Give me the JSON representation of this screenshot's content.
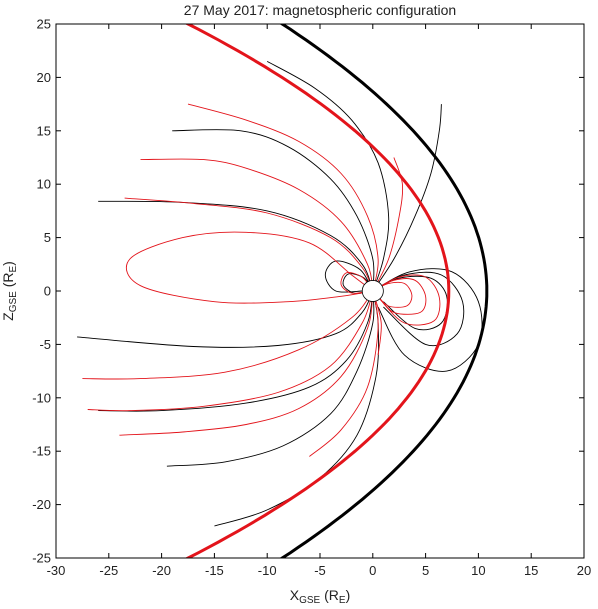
{
  "chart_data": {
    "type": "line",
    "title": "27 May 2017: magnetospheric configuration",
    "xlabel": {
      "main": "X",
      "sub": "GSE",
      "unit_open": " (R",
      "unit_sub": "E",
      "unit_close": ")"
    },
    "ylabel": {
      "main": "Z",
      "sub": "GSE",
      "unit_open": " (R",
      "unit_sub": "E",
      "unit_close": ")"
    },
    "xlim": [
      -30,
      20
    ],
    "ylim": [
      -25,
      25
    ],
    "xticks": [
      -30,
      -25,
      -20,
      -15,
      -10,
      -5,
      0,
      5,
      10,
      15,
      20
    ],
    "yticks": [
      -25,
      -20,
      -15,
      -10,
      -5,
      0,
      5,
      10,
      15,
      20,
      25
    ],
    "grid": false,
    "colors": {
      "black": "#000000",
      "red": "#e3141b"
    },
    "boundaries": [
      {
        "color": "black",
        "nose": 10.8,
        "flare": 0.031
      },
      {
        "color": "red",
        "nose": 7.2,
        "flare": 0.0395
      }
    ],
    "earth_radius": 1,
    "field_lines": [
      {
        "color": "black",
        "points": [
          [
            0,
            0
          ],
          [
            2,
            3
          ],
          [
            4,
            7
          ],
          [
            5.5,
            11
          ],
          [
            6.3,
            15
          ],
          [
            6.5,
            17.5
          ]
        ]
      },
      {
        "color": "black",
        "points": [
          [
            0,
            0
          ],
          [
            1,
            3
          ],
          [
            1.5,
            7
          ],
          [
            0.5,
            12
          ],
          [
            -2,
            16
          ],
          [
            -5.5,
            19
          ],
          [
            -10,
            21.5
          ]
        ]
      },
      {
        "color": "black",
        "points": [
          [
            0,
            0
          ],
          [
            0,
            3
          ],
          [
            -1.5,
            7
          ],
          [
            -4,
            10.5
          ],
          [
            -8,
            13.5
          ],
          [
            -12.5,
            15
          ],
          [
            -19,
            15
          ]
        ]
      },
      {
        "color": "black",
        "points": [
          [
            0,
            0
          ],
          [
            -1,
            2.5
          ],
          [
            -4,
            5.2
          ],
          [
            -10,
            7.5
          ],
          [
            -18,
            8.3
          ],
          [
            -26,
            8.4
          ]
        ]
      },
      {
        "color": "black",
        "points": [
          [
            0,
            0
          ],
          [
            -1,
            -2
          ],
          [
            -3.5,
            -4
          ],
          [
            -9,
            -5.1
          ],
          [
            -17,
            -5.2
          ],
          [
            -28,
            -4.3
          ]
        ]
      },
      {
        "color": "black",
        "points": [
          [
            0,
            0
          ],
          [
            -0.5,
            -3
          ],
          [
            -2.5,
            -6.5
          ],
          [
            -6,
            -9
          ],
          [
            -12,
            -10.5
          ],
          [
            -20,
            -11.2
          ],
          [
            -26,
            -11.2
          ]
        ]
      },
      {
        "color": "black",
        "points": [
          [
            0,
            0
          ],
          [
            0,
            -3
          ],
          [
            -1.5,
            -7.5
          ],
          [
            -4,
            -11.5
          ],
          [
            -8.5,
            -14.5
          ],
          [
            -14,
            -16
          ],
          [
            -19.5,
            -16.4
          ]
        ]
      },
      {
        "color": "black",
        "points": [
          [
            0,
            0
          ],
          [
            0.5,
            -3
          ],
          [
            0.3,
            -8
          ],
          [
            -1.5,
            -13.5
          ],
          [
            -5,
            -17.5
          ],
          [
            -10,
            -20.5
          ],
          [
            -15,
            -22
          ]
        ]
      },
      {
        "color": "black",
        "points": [
          [
            0,
            0
          ],
          [
            -1.2,
            2
          ],
          [
            -3.5,
            2.8
          ],
          [
            -4.5,
            1.5
          ],
          [
            -3.5,
            0
          ],
          [
            -1,
            0
          ]
        ]
      },
      {
        "color": "black",
        "points": [
          [
            0,
            0
          ],
          [
            -0.8,
            1.2
          ],
          [
            -2.3,
            1.6
          ],
          [
            -2.8,
            0.6
          ],
          [
            -1.8,
            -0.2
          ],
          [
            -0.4,
            -0.1
          ]
        ]
      },
      {
        "color": "black",
        "points": [
          [
            0,
            0
          ],
          [
            2.5,
            1.2
          ],
          [
            5.5,
            1.2
          ],
          [
            7,
            -0.5
          ],
          [
            6.5,
            -3
          ],
          [
            4,
            -3.5
          ],
          [
            1,
            -1
          ]
        ]
      },
      {
        "color": "black",
        "points": [
          [
            0,
            0
          ],
          [
            3,
            1.5
          ],
          [
            6.5,
            1.5
          ],
          [
            8.5,
            -1
          ],
          [
            8,
            -4
          ],
          [
            5,
            -5
          ],
          [
            1,
            -1.5
          ]
        ]
      },
      {
        "color": "black",
        "points": [
          [
            0,
            0
          ],
          [
            3.5,
            1.8
          ],
          [
            7.5,
            1.8
          ],
          [
            10,
            -1
          ],
          [
            10,
            -5
          ],
          [
            7,
            -7.5
          ],
          [
            3,
            -6
          ],
          [
            0.5,
            -1.5
          ]
        ]
      },
      {
        "color": "red",
        "points": [
          [
            0,
            0
          ],
          [
            1.5,
            3
          ],
          [
            2.5,
            7
          ],
          [
            2.8,
            10
          ],
          [
            2,
            12.5
          ]
        ]
      },
      {
        "color": "red",
        "points": [
          [
            0,
            0
          ],
          [
            0.5,
            3
          ],
          [
            -0.5,
            7
          ],
          [
            -3,
            11
          ],
          [
            -7,
            14
          ],
          [
            -12,
            16
          ],
          [
            -17.5,
            17.5
          ]
        ]
      },
      {
        "color": "red",
        "points": [
          [
            0,
            0
          ],
          [
            -0.5,
            2.5
          ],
          [
            -3,
            6.5
          ],
          [
            -7,
            9.5
          ],
          [
            -12,
            11.5
          ],
          [
            -16,
            12.3
          ],
          [
            -22,
            12.3
          ]
        ]
      },
      {
        "color": "red",
        "points": [
          [
            0,
            0
          ],
          [
            -1,
            2.2
          ],
          [
            -4,
            5
          ],
          [
            -10,
            7.3
          ],
          [
            -17,
            8.2
          ],
          [
            -23.5,
            8.7
          ]
        ]
      },
      {
        "color": "red",
        "points": [
          [
            0,
            0
          ],
          [
            -2,
            1.5
          ],
          [
            -6,
            4.5
          ],
          [
            -12,
            5.5
          ],
          [
            -18,
            5
          ],
          [
            -23,
            3
          ],
          [
            -22,
            0.5
          ],
          [
            -15,
            -1
          ],
          [
            -8,
            -1
          ],
          [
            -3,
            -0.5
          ],
          [
            0,
            0
          ]
        ]
      },
      {
        "color": "red",
        "points": [
          [
            0,
            0
          ],
          [
            -2,
            -2.5
          ],
          [
            -7,
            -5.5
          ],
          [
            -14,
            -7.6
          ],
          [
            -22,
            -8.2
          ],
          [
            -27.5,
            -8.2
          ]
        ]
      },
      {
        "color": "red",
        "points": [
          [
            0,
            0
          ],
          [
            -1,
            -3
          ],
          [
            -4,
            -7
          ],
          [
            -9,
            -9.5
          ],
          [
            -16,
            -10.8
          ],
          [
            -23,
            -11.2
          ],
          [
            -27,
            -11.1
          ]
        ]
      },
      {
        "color": "red",
        "points": [
          [
            0,
            0
          ],
          [
            -0.5,
            -3.5
          ],
          [
            -3,
            -8
          ],
          [
            -7,
            -11
          ],
          [
            -12,
            -12.5
          ],
          [
            -18,
            -13.2
          ],
          [
            -24,
            -13.5
          ]
        ]
      },
      {
        "color": "red",
        "points": [
          [
            0,
            0
          ],
          [
            0.5,
            -3.5
          ],
          [
            -0.5,
            -9
          ],
          [
            -3,
            -13
          ],
          [
            -6,
            -15.5
          ]
        ]
      },
      {
        "color": "red",
        "points": [
          [
            0,
            0
          ],
          [
            0.8,
            -3
          ],
          [
            0.5,
            -6
          ]
        ]
      },
      {
        "color": "red",
        "points": [
          [
            0,
            0
          ],
          [
            2,
            1
          ],
          [
            4,
            1
          ],
          [
            5,
            -0.5
          ],
          [
            4.5,
            -2
          ],
          [
            2,
            -2
          ],
          [
            0.5,
            -0.5
          ]
        ]
      },
      {
        "color": "red",
        "points": [
          [
            0,
            0
          ],
          [
            1.5,
            0.7
          ],
          [
            3,
            0.7
          ],
          [
            3.7,
            -0.4
          ],
          [
            3.2,
            -1.4
          ],
          [
            1.5,
            -1.4
          ],
          [
            0.3,
            -0.3
          ]
        ]
      },
      {
        "color": "red",
        "points": [
          [
            0,
            0
          ],
          [
            2.5,
            1.3
          ],
          [
            5,
            1.3
          ],
          [
            6.3,
            -0.6
          ],
          [
            5.8,
            -2.8
          ],
          [
            3,
            -3
          ],
          [
            0.7,
            -0.8
          ]
        ]
      },
      {
        "color": "red",
        "points": [
          [
            0,
            0
          ],
          [
            -1,
            1.3
          ],
          [
            -2.5,
            1.7
          ],
          [
            -3,
            0.6
          ],
          [
            -2,
            -0.2
          ],
          [
            -0.5,
            0
          ]
        ]
      }
    ]
  }
}
